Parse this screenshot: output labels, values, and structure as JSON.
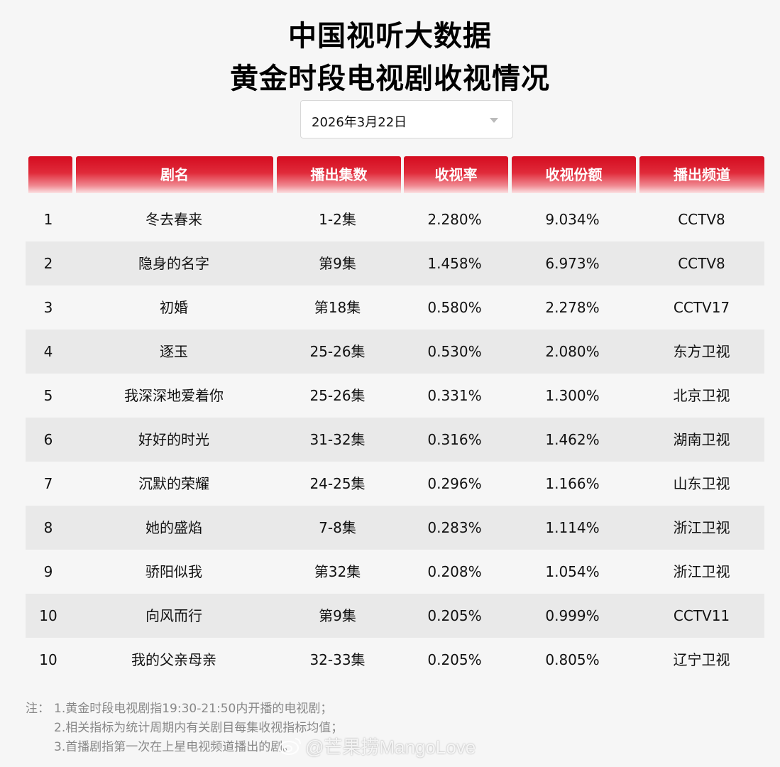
{
  "title": {
    "line1": "中国视听大数据",
    "line2": "黄金时段电视剧收视情况"
  },
  "date_picker": {
    "value": "2026年3月22日",
    "icon": "chevron-down-icon"
  },
  "table": {
    "headers": [
      "",
      "剧名",
      "播出集数",
      "收视率",
      "收视份额",
      "播出频道"
    ],
    "rows": [
      [
        "1",
        "冬去春来",
        "1-2集",
        "2.280%",
        "9.034%",
        "CCTV8"
      ],
      [
        "2",
        "隐身的名字",
        "第9集",
        "1.458%",
        "6.973%",
        "CCTV8"
      ],
      [
        "3",
        "初婚",
        "第18集",
        "0.580%",
        "2.278%",
        "CCTV17"
      ],
      [
        "4",
        "逐玉",
        "25-26集",
        "0.530%",
        "2.080%",
        "东方卫视"
      ],
      [
        "5",
        "我深深地爱着你",
        "25-26集",
        "0.331%",
        "1.300%",
        "北京卫视"
      ],
      [
        "6",
        "好好的时光",
        "31-32集",
        "0.316%",
        "1.462%",
        "湖南卫视"
      ],
      [
        "7",
        "沉默的荣耀",
        "24-25集",
        "0.296%",
        "1.166%",
        "山东卫视"
      ],
      [
        "8",
        "她的盛焰",
        "7-8集",
        "0.283%",
        "1.114%",
        "浙江卫视"
      ],
      [
        "9",
        "骄阳似我",
        "第32集",
        "0.208%",
        "1.054%",
        "浙江卫视"
      ],
      [
        "10",
        "向风而行",
        "第9集",
        "0.205%",
        "0.999%",
        "CCTV11"
      ],
      [
        "10",
        "我的父亲母亲",
        "32-33集",
        "0.205%",
        "0.805%",
        "辽宁卫视"
      ]
    ]
  },
  "notes": {
    "prefix": "注：",
    "items": [
      "1.黄金时段电视剧指19:30-21:50内开播的电视剧；",
      "2.相关指标为统计周期内有关剧目每集收视指标均值；",
      "3.首播剧指第一次在上星电视频道播出的剧。"
    ]
  },
  "watermark": {
    "text": "@芒果捞MangoLove",
    "icon": "weibo-icon"
  }
}
